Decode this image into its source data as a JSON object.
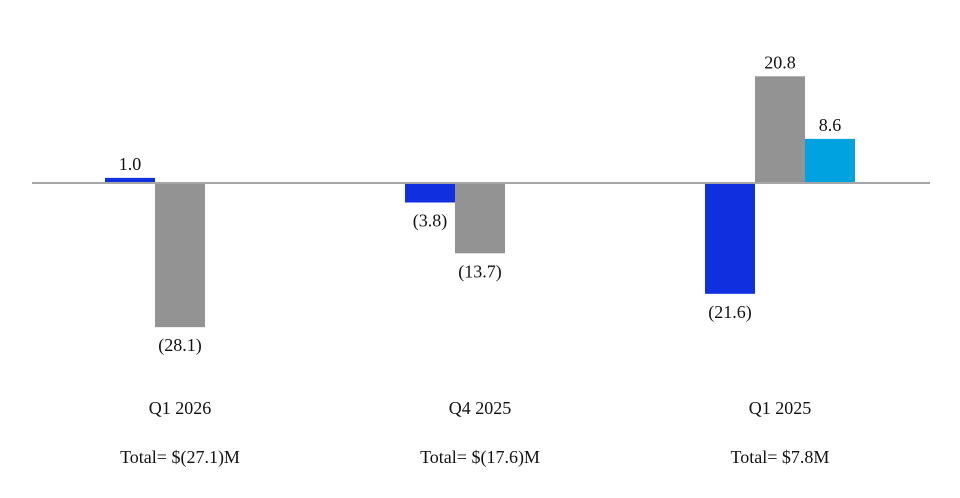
{
  "chart_data": {
    "type": "bar",
    "categories": [
      "Q1 2026",
      "Q4 2025",
      "Q1 2025"
    ],
    "totals": [
      "Total= $(27.1)M",
      "Total= $(17.6)M",
      "Total= $7.8M"
    ],
    "series": [
      {
        "color": "#1030e0",
        "values": [
          1.0,
          -3.8,
          -21.6
        ],
        "labels": [
          "1.0",
          "(3.8)",
          "(21.6)"
        ]
      },
      {
        "color": "#939393",
        "values": [
          -28.1,
          -13.7,
          20.8
        ],
        "labels": [
          "(28.1)",
          "(13.7)",
          "20.8"
        ]
      },
      {
        "color": "#00a3e0",
        "values": [
          null,
          null,
          8.6
        ],
        "labels": [
          null,
          null,
          "8.6"
        ]
      }
    ],
    "axis_color": "#a6a6a6",
    "grid": false,
    "legend": "none"
  }
}
